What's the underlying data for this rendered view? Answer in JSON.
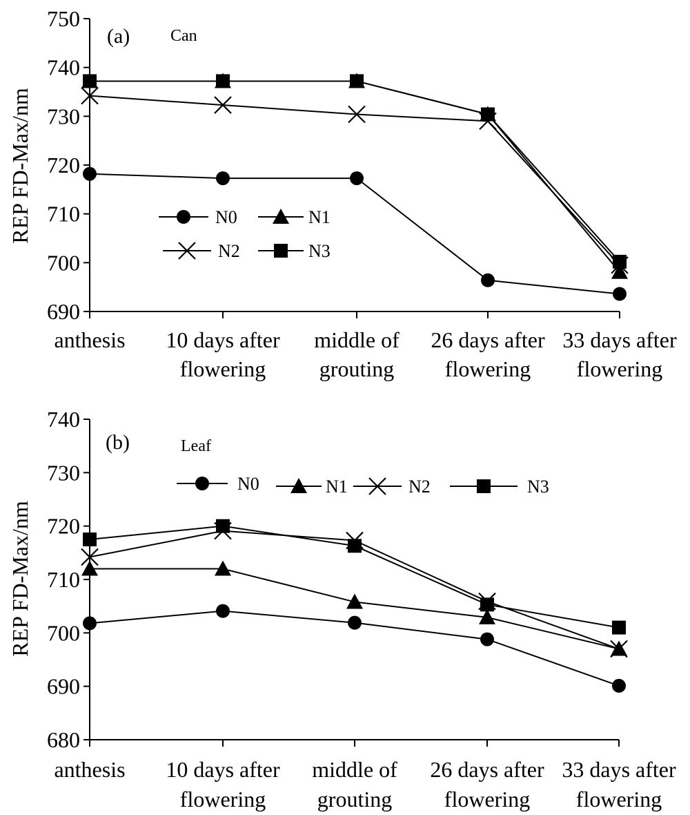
{
  "chart_data": [
    {
      "type": "line",
      "panel_label": "(a)",
      "panel_name": "Can",
      "ylabel": "REP FD-Max/nm",
      "ylim": [
        690,
        750
      ],
      "yticks": [
        690,
        700,
        710,
        720,
        730,
        740,
        750
      ],
      "categories": [
        [
          "anthesis"
        ],
        [
          "10 days after",
          "flowering"
        ],
        [
          "middle of",
          "grouting"
        ],
        [
          "26 days after",
          "flowering"
        ],
        [
          "33 days after",
          "flowering"
        ]
      ],
      "series": [
        {
          "name": "N0",
          "marker": "circle",
          "values": [
            718.2,
            717.3,
            717.3,
            696.4,
            693.6
          ]
        },
        {
          "name": "N1",
          "marker": "triangle",
          "values": [
            737.2,
            737.2,
            737.2,
            730.4,
            698.1
          ]
        },
        {
          "name": "N2",
          "marker": "x",
          "values": [
            734.2,
            732.3,
            730.4,
            729.0,
            699.5
          ]
        },
        {
          "name": "N3",
          "marker": "square",
          "values": [
            737.2,
            737.2,
            737.2,
            730.4,
            700.2
          ]
        }
      ],
      "legend_layout": "2x2"
    },
    {
      "type": "line",
      "panel_label": "(b)",
      "panel_name": "Leaf",
      "ylabel": "REP FD-Max/nm",
      "ylim": [
        680,
        740
      ],
      "yticks": [
        680,
        690,
        700,
        710,
        720,
        730,
        740
      ],
      "categories": [
        [
          "anthesis"
        ],
        [
          "10 days after",
          "flowering"
        ],
        [
          "middle of",
          "grouting"
        ],
        [
          "26 days after",
          "flowering"
        ],
        [
          "33 days after",
          "flowering"
        ]
      ],
      "series": [
        {
          "name": "N0",
          "marker": "circle",
          "values": [
            701.8,
            704.1,
            701.9,
            698.8,
            690.1
          ]
        },
        {
          "name": "N1",
          "marker": "triangle",
          "values": [
            712.0,
            712.0,
            705.8,
            702.9,
            697.0
          ]
        },
        {
          "name": "N2",
          "marker": "x",
          "values": [
            714.2,
            719.1,
            717.3,
            705.9,
            697.0
          ]
        },
        {
          "name": "N3",
          "marker": "square",
          "values": [
            717.5,
            720.0,
            716.3,
            705.3,
            701.0
          ]
        }
      ],
      "legend_layout": "1x4"
    }
  ]
}
